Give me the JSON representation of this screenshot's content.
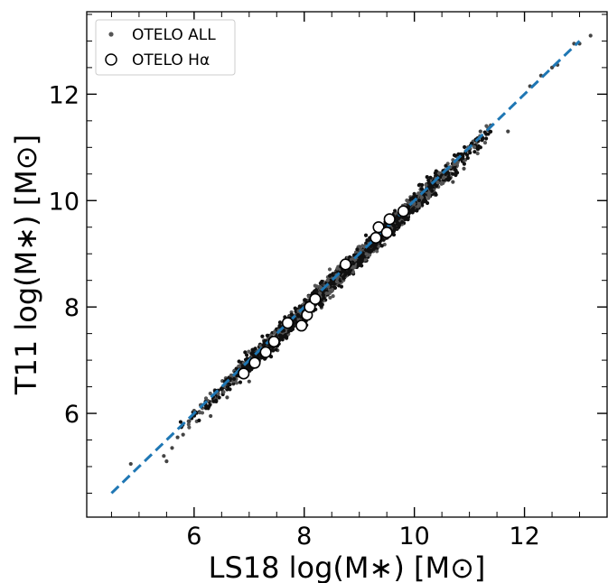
{
  "chart_data": {
    "type": "scatter",
    "xlabel": "LS18 log(M∗) [M⊙]",
    "ylabel": "T11 log(M∗) [M⊙]",
    "xlim": [
      4.05,
      13.5
    ],
    "ylim": [
      4.05,
      13.55
    ],
    "x_ticks": [
      6,
      8,
      10,
      12
    ],
    "y_ticks": [
      6,
      8,
      10,
      12
    ],
    "minor_tick_step": 0.5,
    "legend": {
      "placement": "top-left",
      "entries": [
        "OTELO ALL",
        "OTELO Hα"
      ]
    },
    "series": [
      {
        "name": "OTELO ALL",
        "marker": "small filled dot",
        "color": "#1a1a1a",
        "trend": {
          "slope": 1.0,
          "intercept": 0.0,
          "x_range": [
            4.8,
            13.2
          ],
          "scatter_sd": 0.08
        },
        "points": [
          [
            4.85,
            5.05
          ],
          [
            5.45,
            5.2
          ],
          [
            5.5,
            5.1
          ],
          [
            5.6,
            5.35
          ],
          [
            5.7,
            5.55
          ],
          [
            5.8,
            5.6
          ],
          [
            5.9,
            5.85
          ],
          [
            6.0,
            6.05
          ],
          [
            6.3,
            5.95
          ],
          [
            6.6,
            6.3
          ],
          [
            7.0,
            6.6
          ],
          [
            10.7,
            10.35
          ],
          [
            10.9,
            10.6
          ],
          [
            11.2,
            11.3
          ],
          [
            11.7,
            11.3
          ],
          [
            12.1,
            12.15
          ],
          [
            12.3,
            12.35
          ],
          [
            12.5,
            12.5
          ],
          [
            12.6,
            12.55
          ],
          [
            12.9,
            12.95
          ],
          [
            13.0,
            12.95
          ],
          [
            13.2,
            13.1
          ]
        ]
      },
      {
        "name": "OTELO Hα",
        "marker": "open circle",
        "color": "#000000",
        "points": [
          [
            6.9,
            6.75
          ],
          [
            7.1,
            6.95
          ],
          [
            7.3,
            7.15
          ],
          [
            7.45,
            7.35
          ],
          [
            7.7,
            7.7
          ],
          [
            7.95,
            7.65
          ],
          [
            8.05,
            7.85
          ],
          [
            8.1,
            8.0
          ],
          [
            8.2,
            8.15
          ],
          [
            8.75,
            8.8
          ],
          [
            9.3,
            9.3
          ],
          [
            9.35,
            9.5
          ],
          [
            9.5,
            9.4
          ],
          [
            9.55,
            9.65
          ],
          [
            9.8,
            9.8
          ]
        ]
      }
    ],
    "reference_line": {
      "style": "dashed",
      "color": "#1f77b4",
      "from": [
        4.5,
        4.5
      ],
      "to": [
        13.0,
        13.0
      ]
    }
  }
}
